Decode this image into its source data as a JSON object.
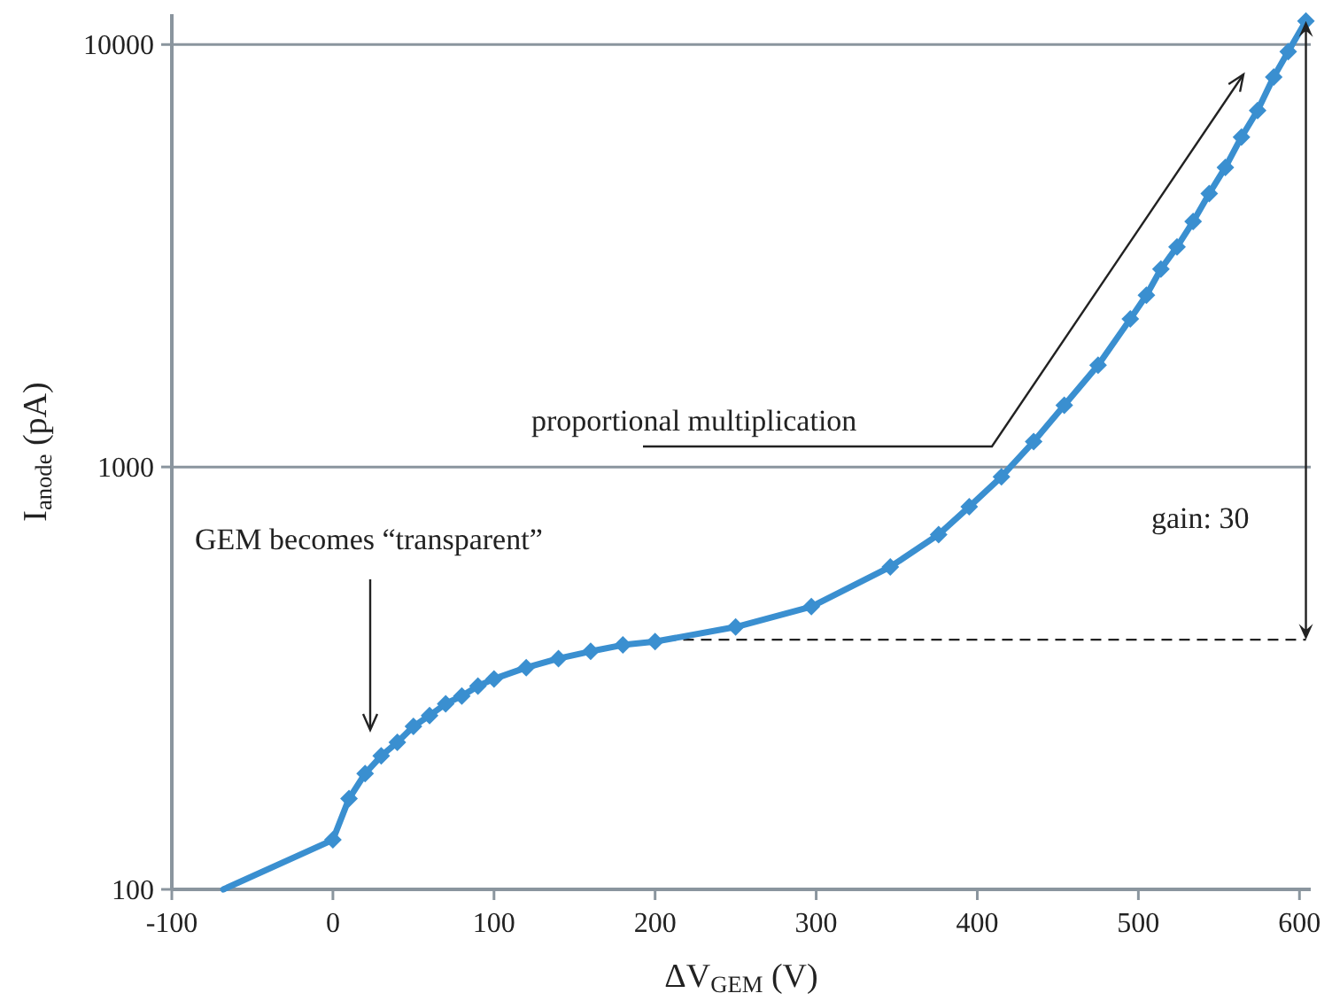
{
  "chart_data": {
    "type": "line",
    "xlabel": "ΔV$_{GEM}$ (V)",
    "ylabel": "I$_{anode}$ (pA)",
    "log": "y",
    "grid": "y",
    "xlim": [
      -100,
      607
    ],
    "ylim": [
      100,
      11800
    ],
    "xticks": [
      -100,
      0,
      100,
      200,
      300,
      400,
      500,
      600
    ],
    "yticks": [
      100,
      1000,
      10000
    ],
    "line_style": "solid",
    "series": [
      {
        "color": "#3a8fd0",
        "x": [
          -68,
          0
        ],
        "values": [
          100,
          131
        ]
      },
      {
        "color": "#3a8fd0",
        "marker": "diamond",
        "x": [
          0,
          10,
          20,
          30,
          40,
          50,
          60,
          70,
          80,
          90,
          100,
          120,
          140,
          160,
          180,
          200,
          250,
          297,
          346,
          376,
          395,
          415,
          435,
          454,
          475,
          495,
          505,
          514,
          524,
          534,
          544,
          554,
          564,
          574,
          584,
          593,
          604
        ],
        "values": [
          131,
          164,
          188,
          207,
          223,
          243,
          258,
          275,
          287,
          303,
          315,
          335,
          352,
          366,
          379,
          386,
          418,
          467,
          580,
          692,
          805,
          948,
          1148,
          1400,
          1742,
          2240,
          2550,
          2940,
          3320,
          3810,
          4440,
          5120,
          6040,
          6980,
          8380,
          9620,
          11370
        ]
      }
    ],
    "ref_lines": [
      {
        "axis": "y",
        "value": 390,
        "line_style": "dashed",
        "color": "#222222"
      }
    ],
    "annotations": [
      "GEM becomes “transparent”",
      "proportional multiplication",
      "gain: 30"
    ]
  }
}
